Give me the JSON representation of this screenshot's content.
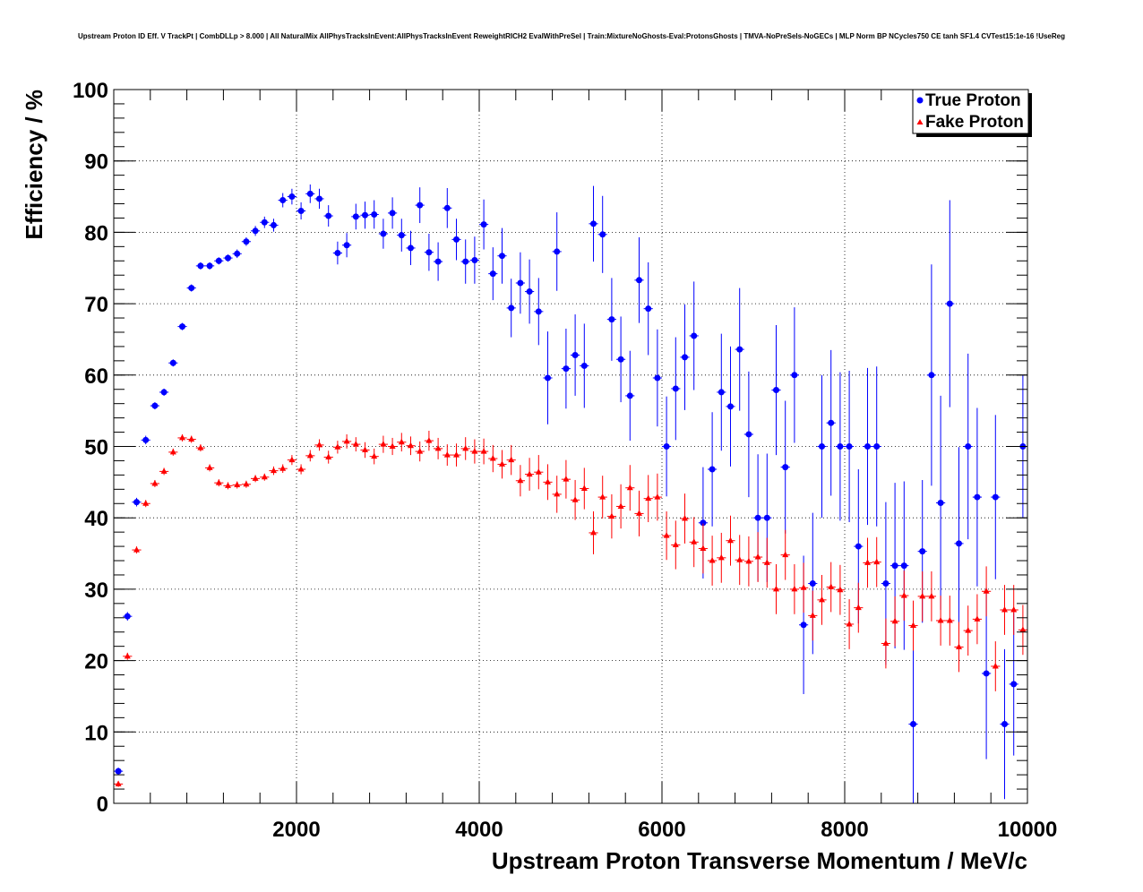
{
  "chart_data": {
    "type": "scatter",
    "title": "Upstream Proton ID Eff. V TrackPt | CombDLLp > 8.000 | All NaturalMix AllPhysTracksInEvent:AllPhysTracksInEvent ReweightRICH2 EvalWithPreSel | Train:MixtureNoGhosts-Eval:ProtonsGhosts | TMVA-NoPreSels-NoGECs | MLP Norm BP NCycles750 CE tanh SF1.4 CVTest15:1e-16 !UseReg",
    "xlabel": "Upstream Proton Transverse Momentum / MeV/c",
    "ylabel": "Efficiency / %",
    "xlim": [
      0,
      10000
    ],
    "ylim": [
      0,
      100
    ],
    "xticks": [
      "2000",
      "4000",
      "6000",
      "8000",
      "10000"
    ],
    "yticks": [
      "0",
      "10",
      "20",
      "30",
      "40",
      "50",
      "60",
      "70",
      "80",
      "90",
      "100"
    ],
    "grid": true,
    "legend_position": "top-right",
    "x": [
      50,
      150,
      250,
      350,
      450,
      550,
      650,
      750,
      850,
      950,
      1050,
      1150,
      1250,
      1350,
      1450,
      1550,
      1650,
      1750,
      1850,
      1950,
      2050,
      2150,
      2250,
      2350,
      2450,
      2550,
      2650,
      2750,
      2850,
      2950,
      3050,
      3150,
      3250,
      3350,
      3450,
      3550,
      3650,
      3750,
      3850,
      3950,
      4050,
      4150,
      4250,
      4350,
      4450,
      4550,
      4650,
      4750,
      4850,
      4950,
      5050,
      5150,
      5250,
      5350,
      5450,
      5550,
      5650,
      5750,
      5850,
      5950,
      6050,
      6150,
      6250,
      6350,
      6450,
      6550,
      6650,
      6750,
      6850,
      6950,
      7050,
      7150,
      7250,
      7350,
      7450,
      7550,
      7650,
      7750,
      7850,
      7950,
      8050,
      8150,
      8250,
      8350,
      8450,
      8550,
      8650,
      8750,
      8850,
      8950,
      9050,
      9150,
      9250,
      9350,
      9450,
      9550,
      9650,
      9750,
      9850,
      9950
    ],
    "series": [
      {
        "name": "True Proton",
        "color": "#0000ff",
        "marker": "circle",
        "values": [
          4.5,
          26.2,
          42.2,
          50.9,
          55.7,
          57.6,
          61.7,
          66.8,
          72.2,
          75.3,
          75.3,
          76.0,
          76.4,
          77.0,
          78.7,
          80.2,
          81.4,
          81.0,
          84.5,
          85.0,
          83.0,
          85.4,
          84.7,
          82.3,
          77.1,
          78.2,
          82.2,
          82.4,
          82.5,
          79.8,
          82.7,
          79.6,
          77.8,
          83.8,
          77.2,
          75.9,
          83.4,
          79.0,
          75.9,
          76.1,
          81.1,
          74.2,
          76.7,
          69.4,
          72.9,
          71.7,
          68.9,
          59.6,
          77.3,
          60.9,
          62.8,
          61.3,
          81.2,
          79.7,
          67.8,
          62.2,
          57.1,
          73.3,
          69.3,
          59.6,
          50.0,
          58.1,
          62.5,
          65.5,
          39.3,
          46.8,
          57.6,
          55.6,
          63.6,
          51.7,
          40.0,
          40.0,
          57.9,
          47.1,
          60.0,
          25.0,
          30.8,
          50.0,
          53.3,
          50.0,
          50.0,
          36.0,
          50.0,
          50.0,
          30.8,
          33.3,
          33.3,
          11.1,
          35.3,
          60.0,
          42.1,
          70.0,
          36.4,
          50.0,
          42.9,
          18.2,
          42.9,
          11.1,
          16.7,
          50.0
        ],
        "errors": [
          0.5,
          0.6,
          0.6,
          0.6,
          0.5,
          0.5,
          0.5,
          0.5,
          0.5,
          0.5,
          0.5,
          0.5,
          0.5,
          0.6,
          0.6,
          0.7,
          0.8,
          0.9,
          1.0,
          1.1,
          1.2,
          1.3,
          1.4,
          1.5,
          1.6,
          1.7,
          1.8,
          1.9,
          2.0,
          2.1,
          2.2,
          2.3,
          2.4,
          2.5,
          2.6,
          2.7,
          2.8,
          2.9,
          3.1,
          3.3,
          3.5,
          3.7,
          3.9,
          4.1,
          4.3,
          4.5,
          4.7,
          6.5,
          5.5,
          5.6,
          5.7,
          5.9,
          5.3,
          5.4,
          5.8,
          6.0,
          6.3,
          6.0,
          6.5,
          6.8,
          7.0,
          7.2,
          7.4,
          7.6,
          7.8,
          8.0,
          8.2,
          8.4,
          8.6,
          8.8,
          8.9,
          9.0,
          9.1,
          9.3,
          9.5,
          9.7,
          9.9,
          10.0,
          10.2,
          10.4,
          10.6,
          10.8,
          11.0,
          11.2,
          11.4,
          11.6,
          11.8,
          12.0,
          10.0,
          15.5,
          15.0,
          14.5,
          13.5,
          13.0,
          12.5,
          12.0,
          11.5,
          10.5,
          10.0,
          10.0
        ]
      },
      {
        "name": "Fake Proton",
        "color": "#ff0000",
        "marker": "triangle",
        "values": [
          2.7,
          20.6,
          35.5,
          42.0,
          44.8,
          46.5,
          49.2,
          51.2,
          51.0,
          49.8,
          47.0,
          44.9,
          44.5,
          44.6,
          44.7,
          45.5,
          45.7,
          46.6,
          46.9,
          48.1,
          46.8,
          48.7,
          50.2,
          48.5,
          49.9,
          50.7,
          50.3,
          49.5,
          48.6,
          50.3,
          50.0,
          50.6,
          50.1,
          49.3,
          50.8,
          49.7,
          48.8,
          48.8,
          49.7,
          49.3,
          49.3,
          48.3,
          47.5,
          48.1,
          45.2,
          46.1,
          46.4,
          45.0,
          43.3,
          45.4,
          42.5,
          44.1,
          37.9,
          42.9,
          40.2,
          41.6,
          44.2,
          40.6,
          42.7,
          42.9,
          37.5,
          36.2,
          39.9,
          36.6,
          35.7,
          34.0,
          34.4,
          36.8,
          34.1,
          33.9,
          34.5,
          33.7,
          30.0,
          34.8,
          30.0,
          30.2,
          26.3,
          28.5,
          30.3,
          29.9,
          25.1,
          27.4,
          33.7,
          33.8,
          22.4,
          25.5,
          29.1,
          24.9,
          29.0,
          29.0,
          25.6,
          25.6,
          21.9,
          24.2,
          25.8,
          29.7,
          19.2,
          27.1,
          27.1,
          24.3
        ],
        "errors": [
          0.4,
          0.5,
          0.5,
          0.5,
          0.5,
          0.5,
          0.5,
          0.5,
          0.5,
          0.5,
          0.5,
          0.5,
          0.5,
          0.5,
          0.5,
          0.5,
          0.5,
          0.6,
          0.6,
          0.7,
          0.7,
          0.8,
          0.8,
          0.9,
          0.9,
          1.0,
          1.0,
          1.1,
          1.1,
          1.2,
          1.2,
          1.3,
          1.3,
          1.4,
          1.4,
          1.5,
          1.5,
          1.6,
          1.6,
          1.7,
          1.8,
          1.9,
          2.0,
          2.1,
          2.2,
          2.3,
          2.4,
          2.5,
          2.6,
          2.7,
          2.8,
          2.9,
          3.0,
          3.0,
          3.1,
          3.1,
          3.2,
          3.2,
          3.3,
          3.3,
          3.4,
          3.4,
          3.5,
          3.5,
          3.5,
          3.5,
          3.5,
          3.5,
          3.5,
          3.5,
          3.5,
          3.5,
          3.5,
          3.5,
          3.5,
          3.5,
          3.5,
          3.5,
          3.5,
          3.5,
          3.5,
          3.5,
          3.5,
          3.5,
          3.5,
          3.5,
          3.5,
          3.5,
          3.5,
          3.5,
          3.5,
          3.5,
          3.5,
          3.5,
          3.5,
          3.5,
          3.5,
          3.5,
          3.5,
          3.5
        ]
      }
    ]
  }
}
